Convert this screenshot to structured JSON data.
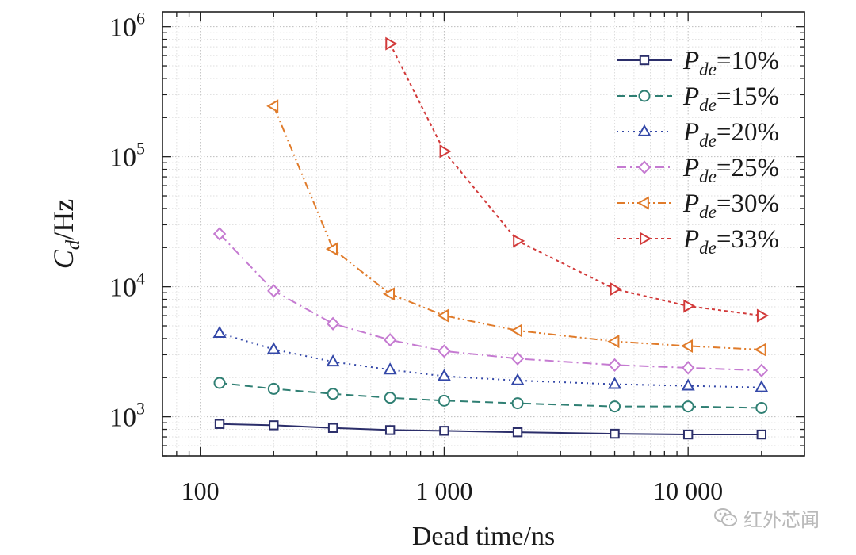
{
  "chart_data": {
    "type": "line",
    "xscale": "log",
    "yscale": "log",
    "xlabel": "Dead time/ns",
    "ylabel": {
      "main": "C",
      "sub": "d",
      "unit": "/Hz"
    },
    "xlim": [
      70,
      30000
    ],
    "ylim": [
      500,
      1300000
    ],
    "xticks": [
      {
        "value": 100,
        "label": "100"
      },
      {
        "value": 1000,
        "label": "1 000"
      },
      {
        "value": 10000,
        "label": "10 000"
      }
    ],
    "yticks": [
      {
        "value": 1000,
        "base": "10",
        "exp": "3"
      },
      {
        "value": 10000,
        "base": "10",
        "exp": "4"
      },
      {
        "value": 100000,
        "base": "10",
        "exp": "5"
      },
      {
        "value": 1000000,
        "base": "10",
        "exp": "6"
      }
    ],
    "grid": true,
    "legend_position": "top-right",
    "series": [
      {
        "name": "P_de=10%",
        "legend_sym": "P",
        "legend_sub": "de",
        "legend_val": "=10%",
        "color": "#2b2e6a",
        "marker": "square",
        "dash": "solid",
        "x": [
          120,
          200,
          350,
          600,
          1000,
          2000,
          5000,
          10000,
          20000
        ],
        "y": [
          880,
          860,
          820,
          790,
          780,
          760,
          740,
          730,
          730
        ]
      },
      {
        "name": "P_de=15%",
        "legend_sym": "P",
        "legend_sub": "de",
        "legend_val": "=15%",
        "color": "#2f7f73",
        "marker": "circle",
        "dash": "dashed",
        "x": [
          120,
          200,
          350,
          600,
          1000,
          2000,
          5000,
          10000,
          20000
        ],
        "y": [
          1820,
          1640,
          1500,
          1400,
          1330,
          1270,
          1200,
          1200,
          1170
        ]
      },
      {
        "name": "P_de=20%",
        "legend_sym": "P",
        "legend_sub": "de",
        "legend_val": "=20%",
        "color": "#3448a8",
        "marker": "triangle-up",
        "dash": "dotted",
        "x": [
          120,
          200,
          350,
          600,
          1000,
          2000,
          5000,
          10000,
          20000
        ],
        "y": [
          4400,
          3300,
          2650,
          2300,
          2050,
          1900,
          1780,
          1730,
          1680
        ]
      },
      {
        "name": "P_de=25%",
        "legend_sym": "P",
        "legend_sub": "de",
        "legend_val": "=25%",
        "color": "#c57ad1",
        "marker": "diamond",
        "dash": "dashdot",
        "x": [
          120,
          200,
          350,
          600,
          1000,
          2000,
          5000,
          10000,
          20000
        ],
        "y": [
          25500,
          9300,
          5200,
          3900,
          3200,
          2800,
          2500,
          2380,
          2270
        ]
      },
      {
        "name": "P_de=30%",
        "legend_sym": "P",
        "legend_sub": "de",
        "legend_val": "=30%",
        "color": "#e07b2a",
        "marker": "triangle-left",
        "dash": "dashdotdot",
        "x": [
          200,
          350,
          600,
          1000,
          2000,
          5000,
          10000,
          20000
        ],
        "y": [
          245000,
          19500,
          8800,
          6000,
          4600,
          3800,
          3500,
          3280
        ]
      },
      {
        "name": "P_de=33%",
        "legend_sym": "P",
        "legend_sub": "de",
        "legend_val": "=33%",
        "color": "#d23a3a",
        "marker": "triangle-right",
        "dash": "shortdash",
        "x": [
          600,
          1000,
          2000,
          5000,
          10000,
          20000
        ],
        "y": [
          740000,
          110000,
          22500,
          9600,
          7100,
          6000
        ]
      }
    ]
  },
  "watermark": {
    "text": "红外芯闻",
    "icon": "wechat-icon"
  }
}
